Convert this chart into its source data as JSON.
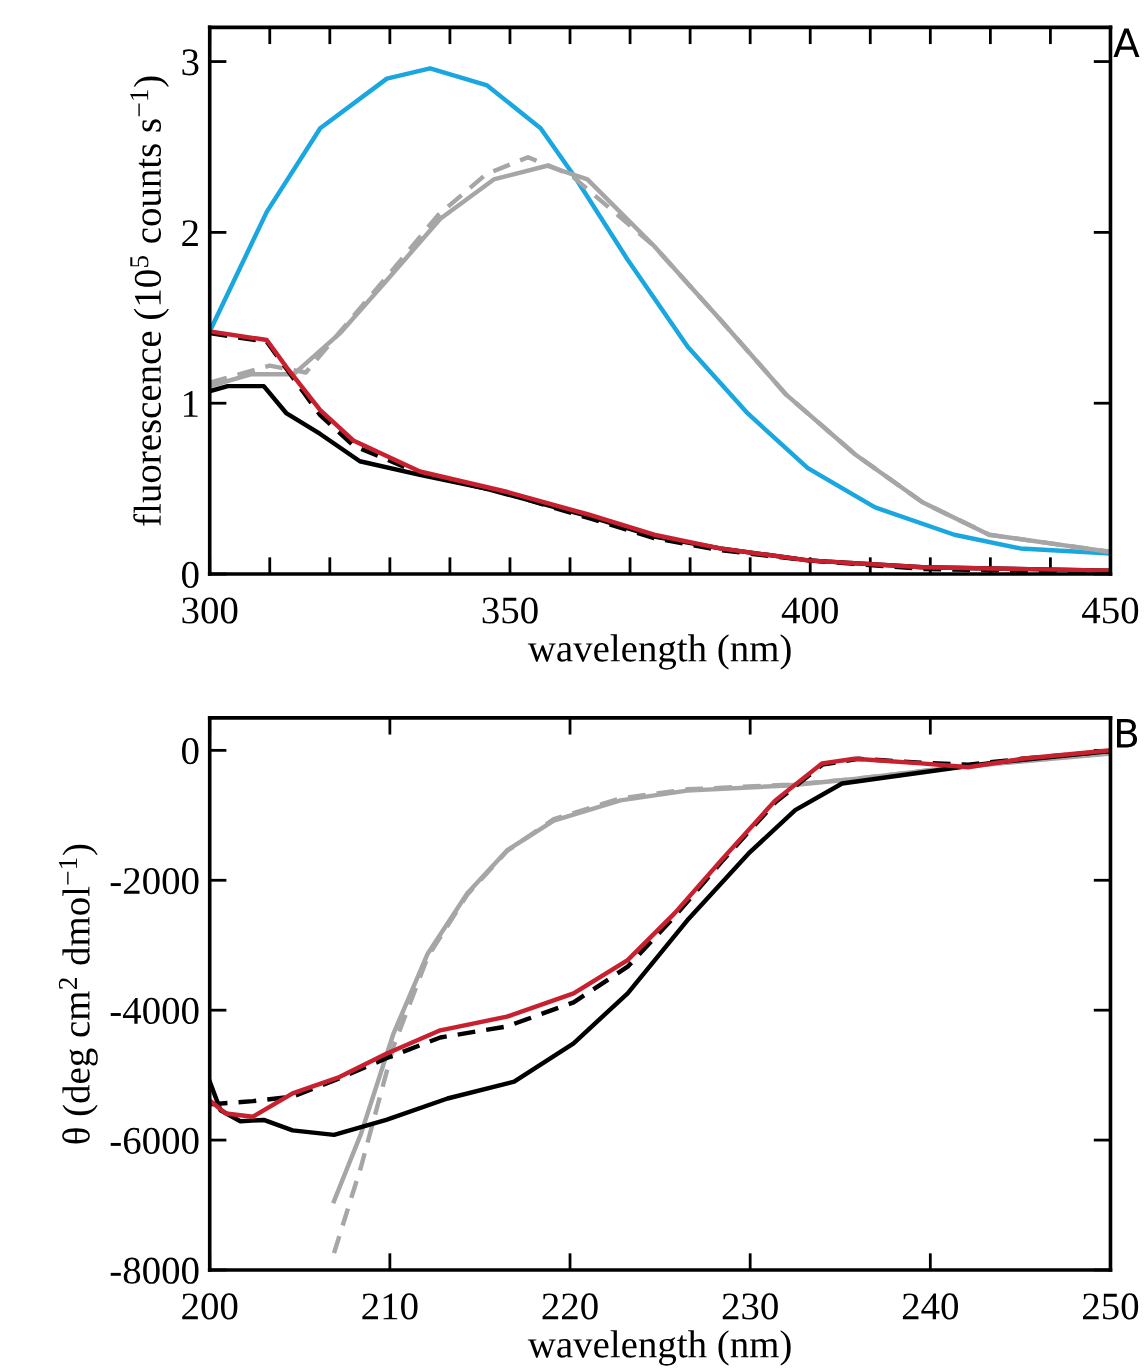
{
  "chart_data": [
    {
      "type": "line",
      "xlabel": "wavelength (nm)",
      "ylabel": "fluorescence (10$^{5}$ counts s$^{−1}$)",
      "annotations": [
        "A"
      ],
      "xlim": [
        300,
        450
      ],
      "ylim": [
        0,
        3.2
      ],
      "xticks": [
        300,
        {
          "value": 310,
          "label": null
        },
        {
          "value": 320,
          "label": null
        },
        {
          "value": 330,
          "label": null
        },
        {
          "value": 340,
          "label": null
        },
        350,
        {
          "value": 360,
          "label": null
        },
        {
          "value": 370,
          "label": null
        },
        {
          "value": 380,
          "label": null
        },
        {
          "value": 390,
          "label": null
        },
        400,
        {
          "value": 410,
          "label": null
        },
        {
          "value": 420,
          "label": null
        },
        {
          "value": 430,
          "label": null
        },
        {
          "value": 440,
          "label": null
        },
        450
      ],
      "yticks": [
        0,
        1,
        2,
        3
      ],
      "grid": false,
      "series": [
        {
          "color": "#1aa7e0",
          "line_style": "solid",
          "x": [
            300,
            309.5,
            318.4,
            329.5,
            336.7,
            346.2,
            355.1,
            360.7,
            369.6,
            379.6,
            389.6,
            399.6,
            410.8,
            424,
            435,
            450
          ],
          "values": [
            1.42,
            2.12,
            2.61,
            2.9,
            2.96,
            2.86,
            2.61,
            2.33,
            1.84,
            1.33,
            0.94,
            0.62,
            0.39,
            0.23,
            0.15,
            0.12
          ]
        },
        {
          "color": "#a6a6a6",
          "line_style": "solid",
          "x": [
            300,
            307,
            314,
            321.7,
            329.5,
            338.4,
            347.3,
            356.2,
            362.9,
            374,
            385,
            396,
            407.5,
            418.7,
            429.8,
            450
          ],
          "values": [
            1.1,
            1.17,
            1.17,
            1.41,
            1.72,
            2.08,
            2.31,
            2.39,
            2.31,
            1.92,
            1.49,
            1.05,
            0.7,
            0.42,
            0.23,
            0.13
          ]
        },
        {
          "color": "#a6a6a6",
          "line_style": "dashed",
          "x": [
            300,
            310,
            316,
            322,
            330,
            338,
            346,
            353,
            360,
            374,
            385,
            396,
            407.5,
            418.7,
            429.8,
            450
          ],
          "values": [
            1.12,
            1.22,
            1.18,
            1.43,
            1.76,
            2.1,
            2.34,
            2.44,
            2.34,
            1.92,
            1.49,
            1.05,
            0.7,
            0.42,
            0.23,
            0.13
          ]
        },
        {
          "color": "#000000",
          "line_style": "solid",
          "x": [
            300,
            303,
            309,
            312.8,
            318.4,
            325,
            335,
            346,
            362.9,
            374,
            385,
            399.6,
            418.7,
            450
          ],
          "values": [
            1.07,
            1.1,
            1.1,
            0.94,
            0.82,
            0.66,
            0.58,
            0.5,
            0.34,
            0.22,
            0.15,
            0.08,
            0.04,
            0.02
          ]
        },
        {
          "color": "#000000",
          "line_style": "dashed",
          "x": [
            300,
            309.5,
            312.8,
            318.4,
            324,
            335,
            349.6,
            362.9,
            374,
            385,
            399.6,
            418.7,
            450
          ],
          "values": [
            1.41,
            1.36,
            1.2,
            0.93,
            0.75,
            0.59,
            0.47,
            0.33,
            0.21,
            0.14,
            0.08,
            0.03,
            0.01
          ]
        },
        {
          "color": "#c8202f",
          "line_style": "solid",
          "x": [
            300,
            309.5,
            312.8,
            318.4,
            324,
            335,
            349.6,
            362.9,
            374,
            385,
            399.6,
            418.7,
            450
          ],
          "values": [
            1.42,
            1.37,
            1.21,
            0.96,
            0.78,
            0.6,
            0.48,
            0.35,
            0.23,
            0.15,
            0.08,
            0.04,
            0.02
          ]
        }
      ]
    },
    {
      "type": "line",
      "xlabel": "wavelength (nm)",
      "ylabel": "θ (deg cm$^{2}$ dmol$^{−1}$)",
      "annotations": [
        "B"
      ],
      "xlim": [
        200,
        250
      ],
      "ylim": [
        -8000,
        500
      ],
      "xticks": [
        200,
        210,
        220,
        230,
        240,
        250
      ],
      "yticks": [
        {
          "value": -8000,
          "label": "-8000"
        },
        {
          "value": -6000,
          "label": "-6000"
        },
        {
          "value": -4000,
          "label": "-4000"
        },
        {
          "value": -2000,
          "label": "-2000"
        },
        0
      ],
      "grid": false,
      "series": [
        {
          "color": "#a6a6a6",
          "line_style": "solid",
          "x": [
            206.9,
            208.4,
            210.2,
            212.1,
            214.3,
            216.5,
            219.1,
            222.8,
            226.5,
            232.1,
            235.8,
            241.4,
            250
          ],
          "values": [
            -6940,
            -5900,
            -4360,
            -3130,
            -2200,
            -1540,
            -1080,
            -770,
            -620,
            -540,
            -440,
            -260,
            -50
          ]
        },
        {
          "color": "#a6a6a6",
          "line_style": "dashed",
          "x": [
            206.9,
            208.4,
            210.2,
            212.1,
            214.3,
            216.5,
            219.1,
            222.8,
            226.5,
            232.1,
            235.8,
            241.4,
            250
          ],
          "values": [
            -7740,
            -6410,
            -4560,
            -3180,
            -2220,
            -1550,
            -1060,
            -740,
            -600,
            -530,
            -440,
            -260,
            -40
          ]
        },
        {
          "color": "#000000",
          "line_style": "solid",
          "x": [
            200,
            200.6,
            201.7,
            203,
            204.6,
            206.9,
            209.8,
            213.2,
            216.9,
            220.2,
            223.2,
            226.5,
            229.9,
            232.5,
            235.1,
            239.5,
            243.2,
            250
          ],
          "values": [
            -5100,
            -5540,
            -5710,
            -5690,
            -5850,
            -5920,
            -5690,
            -5360,
            -5100,
            -4510,
            -3740,
            -2620,
            -1590,
            -920,
            -510,
            -340,
            -200,
            -10
          ]
        },
        {
          "color": "#000000",
          "line_style": "dashed",
          "x": [
            200,
            202.4,
            204.6,
            207.2,
            209.8,
            212.8,
            216.5,
            220.2,
            223.2,
            225.8,
            228.4,
            231.4,
            234,
            236,
            239.5,
            242.1,
            245.1,
            250
          ],
          "values": [
            -5450,
            -5400,
            -5330,
            -5050,
            -4740,
            -4420,
            -4250,
            -3880,
            -3330,
            -2560,
            -1720,
            -800,
            -220,
            -130,
            -190,
            -220,
            -130,
            -10
          ]
        },
        {
          "color": "#c8202f",
          "line_style": "solid",
          "x": [
            200,
            200.9,
            202.4,
            204.6,
            207.2,
            209.8,
            212.8,
            216.5,
            220.2,
            223.2,
            225.8,
            228.4,
            231.4,
            234,
            235.8,
            239.5,
            242.1,
            245.1,
            250
          ],
          "values": [
            -5390,
            -5590,
            -5640,
            -5280,
            -5030,
            -4670,
            -4310,
            -4100,
            -3740,
            -3230,
            -2510,
            -1690,
            -770,
            -200,
            -130,
            -200,
            -260,
            -130,
            0
          ]
        }
      ]
    }
  ]
}
